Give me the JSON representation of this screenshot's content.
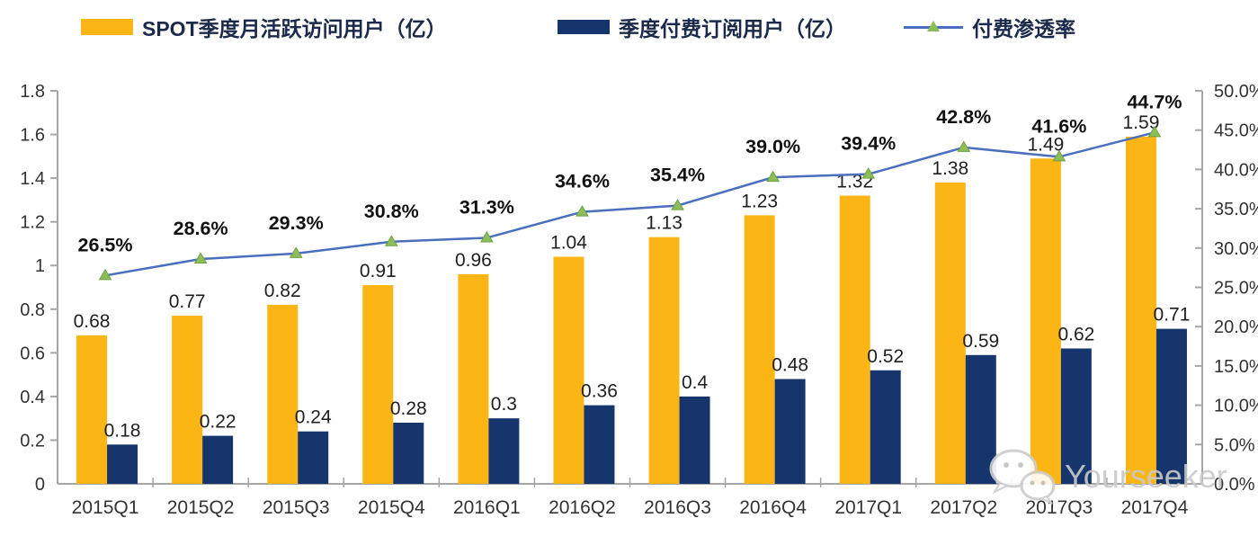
{
  "legend": [
    {
      "label": "SPOT季度月活跃访问用户（亿）",
      "swatch": "bar",
      "color": "#FBB616"
    },
    {
      "label": "季度付费订阅用户（亿）",
      "swatch": "bar",
      "color": "#16356C"
    },
    {
      "label": "付费渗透率",
      "swatch": "line",
      "color": "#4A6FBF",
      "marker_color": "#8CBE58"
    }
  ],
  "watermark": {
    "text": "Yourseeker",
    "icon": "wechat-icon",
    "color": "#C9C9C9"
  },
  "chart_data": {
    "type": "combo",
    "title": "",
    "grid": false,
    "legend_position": "top",
    "axis_color": "#A6A6A6",
    "categories": [
      "2015Q1",
      "2015Q2",
      "2015Q3",
      "2015Q4",
      "2016Q1",
      "2016Q2",
      "2016Q3",
      "2016Q4",
      "2017Q1",
      "2017Q2",
      "2017Q3",
      "2017Q4"
    ],
    "series": [
      {
        "name": "SPOT季度月活跃访问用户（亿）",
        "type": "bar",
        "axis": "left",
        "color": "#FBB616",
        "values": [
          0.68,
          0.77,
          0.82,
          0.91,
          0.96,
          1.04,
          1.13,
          1.23,
          1.32,
          1.38,
          1.49,
          1.59
        ],
        "labels": [
          "0.68",
          "0.77",
          "0.82",
          "0.91",
          "0.96",
          "1.04",
          "1.13",
          "1.23",
          "1.32",
          "1.38",
          "1.49",
          "1.59"
        ]
      },
      {
        "name": "季度付费订阅用户（亿）",
        "type": "bar",
        "axis": "left",
        "color": "#16356C",
        "values": [
          0.18,
          0.22,
          0.24,
          0.28,
          0.3,
          0.36,
          0.4,
          0.48,
          0.52,
          0.59,
          0.62,
          0.71
        ],
        "labels": [
          "0.18",
          "0.22",
          "0.24",
          "0.28",
          "0.3",
          "0.36",
          "0.4",
          "0.48",
          "0.52",
          "0.59",
          "0.62",
          "0.71"
        ]
      },
      {
        "name": "付费渗透率",
        "type": "line",
        "axis": "right",
        "color": "#4A6FBF",
        "marker": "triangle",
        "marker_color": "#8CBE58",
        "values": [
          26.5,
          28.6,
          29.3,
          30.8,
          31.3,
          34.6,
          35.4,
          39.0,
          39.4,
          42.8,
          41.6,
          44.7
        ],
        "labels": [
          "26.5%",
          "28.6%",
          "29.3%",
          "30.8%",
          "31.3%",
          "34.6%",
          "35.4%",
          "39.0%",
          "39.4%",
          "42.8%",
          "41.6%",
          "44.7%"
        ]
      }
    ],
    "left_axis": {
      "min": 0,
      "max": 1.8,
      "step": 0.2,
      "tick_labels": [
        "0",
        "0.2",
        "0.4",
        "0.6",
        "0.8",
        "1",
        "1.2",
        "1.4",
        "1.6",
        "1.8"
      ]
    },
    "right_axis": {
      "min": 0,
      "max": 50,
      "step": 5,
      "tick_labels": [
        "0.0%",
        "5.0%",
        "10.0%",
        "15.0%",
        "20.0%",
        "25.0%",
        "30.0%",
        "35.0%",
        "40.0%",
        "45.0%",
        "50.0%"
      ]
    }
  }
}
